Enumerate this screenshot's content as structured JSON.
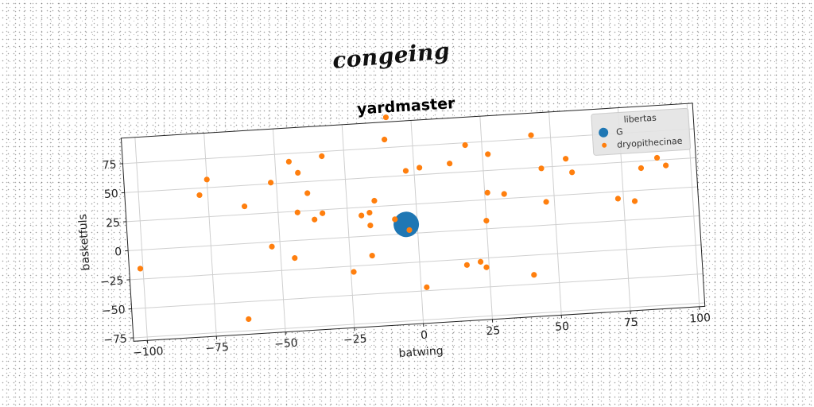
{
  "supertitle": "congeing",
  "chart_data": {
    "type": "scatter",
    "title": "yardmaster",
    "xlabel": "batwing",
    "ylabel": "basketfuls",
    "xlim": [
      -105,
      102
    ],
    "ylim": [
      -78,
      97
    ],
    "xticks": [
      -100,
      -75,
      -50,
      -25,
      0,
      25,
      50,
      75,
      100
    ],
    "yticks": [
      -75,
      -50,
      -25,
      0,
      25,
      50,
      75
    ],
    "grid": true,
    "legend": {
      "title": "libertas",
      "placement": "top-right"
    },
    "series": [
      {
        "name": "G",
        "color": "#1f77b4",
        "marker_size": "large",
        "points": [
          [
            -4,
            8
          ]
        ]
      },
      {
        "name": "dryopithecinae",
        "color": "#ff7f0e",
        "marker_size": "small",
        "points": [
          [
            -101,
            -16
          ],
          [
            -78,
            44
          ],
          [
            -75,
            57
          ],
          [
            -62,
            32
          ],
          [
            -53,
            -4
          ],
          [
            -52,
            51
          ],
          [
            -63,
            -65
          ],
          [
            -45,
            68
          ],
          [
            -45,
            -15
          ],
          [
            -43,
            24
          ],
          [
            -42,
            58
          ],
          [
            -39,
            40
          ],
          [
            -37,
            17
          ],
          [
            -34,
            22
          ],
          [
            -33,
            71
          ],
          [
            -24,
            -30
          ],
          [
            -20,
            18
          ],
          [
            -17,
            20
          ],
          [
            -15,
            30
          ],
          [
            -17,
            9
          ],
          [
            -17,
            -17
          ],
          [
            -10,
            82
          ],
          [
            -9,
            101
          ],
          [
            -8,
            13
          ],
          [
            -3,
            3
          ],
          [
            -3,
            54
          ],
          [
            2,
            -47
          ],
          [
            2,
            56
          ],
          [
            13,
            58
          ],
          [
            17,
            -30
          ],
          [
            19,
            73
          ],
          [
            22,
            -28
          ],
          [
            24,
            -33
          ],
          [
            25,
            7
          ],
          [
            26,
            31
          ],
          [
            27,
            64
          ],
          [
            32,
            29
          ],
          [
            41,
            -42
          ],
          [
            43,
            78
          ],
          [
            46,
            49
          ],
          [
            47,
            20
          ],
          [
            55,
            56
          ],
          [
            57,
            44
          ],
          [
            73,
            19
          ],
          [
            79,
            16
          ],
          [
            82,
            44
          ],
          [
            88,
            52
          ],
          [
            91,
            45
          ]
        ]
      }
    ]
  }
}
